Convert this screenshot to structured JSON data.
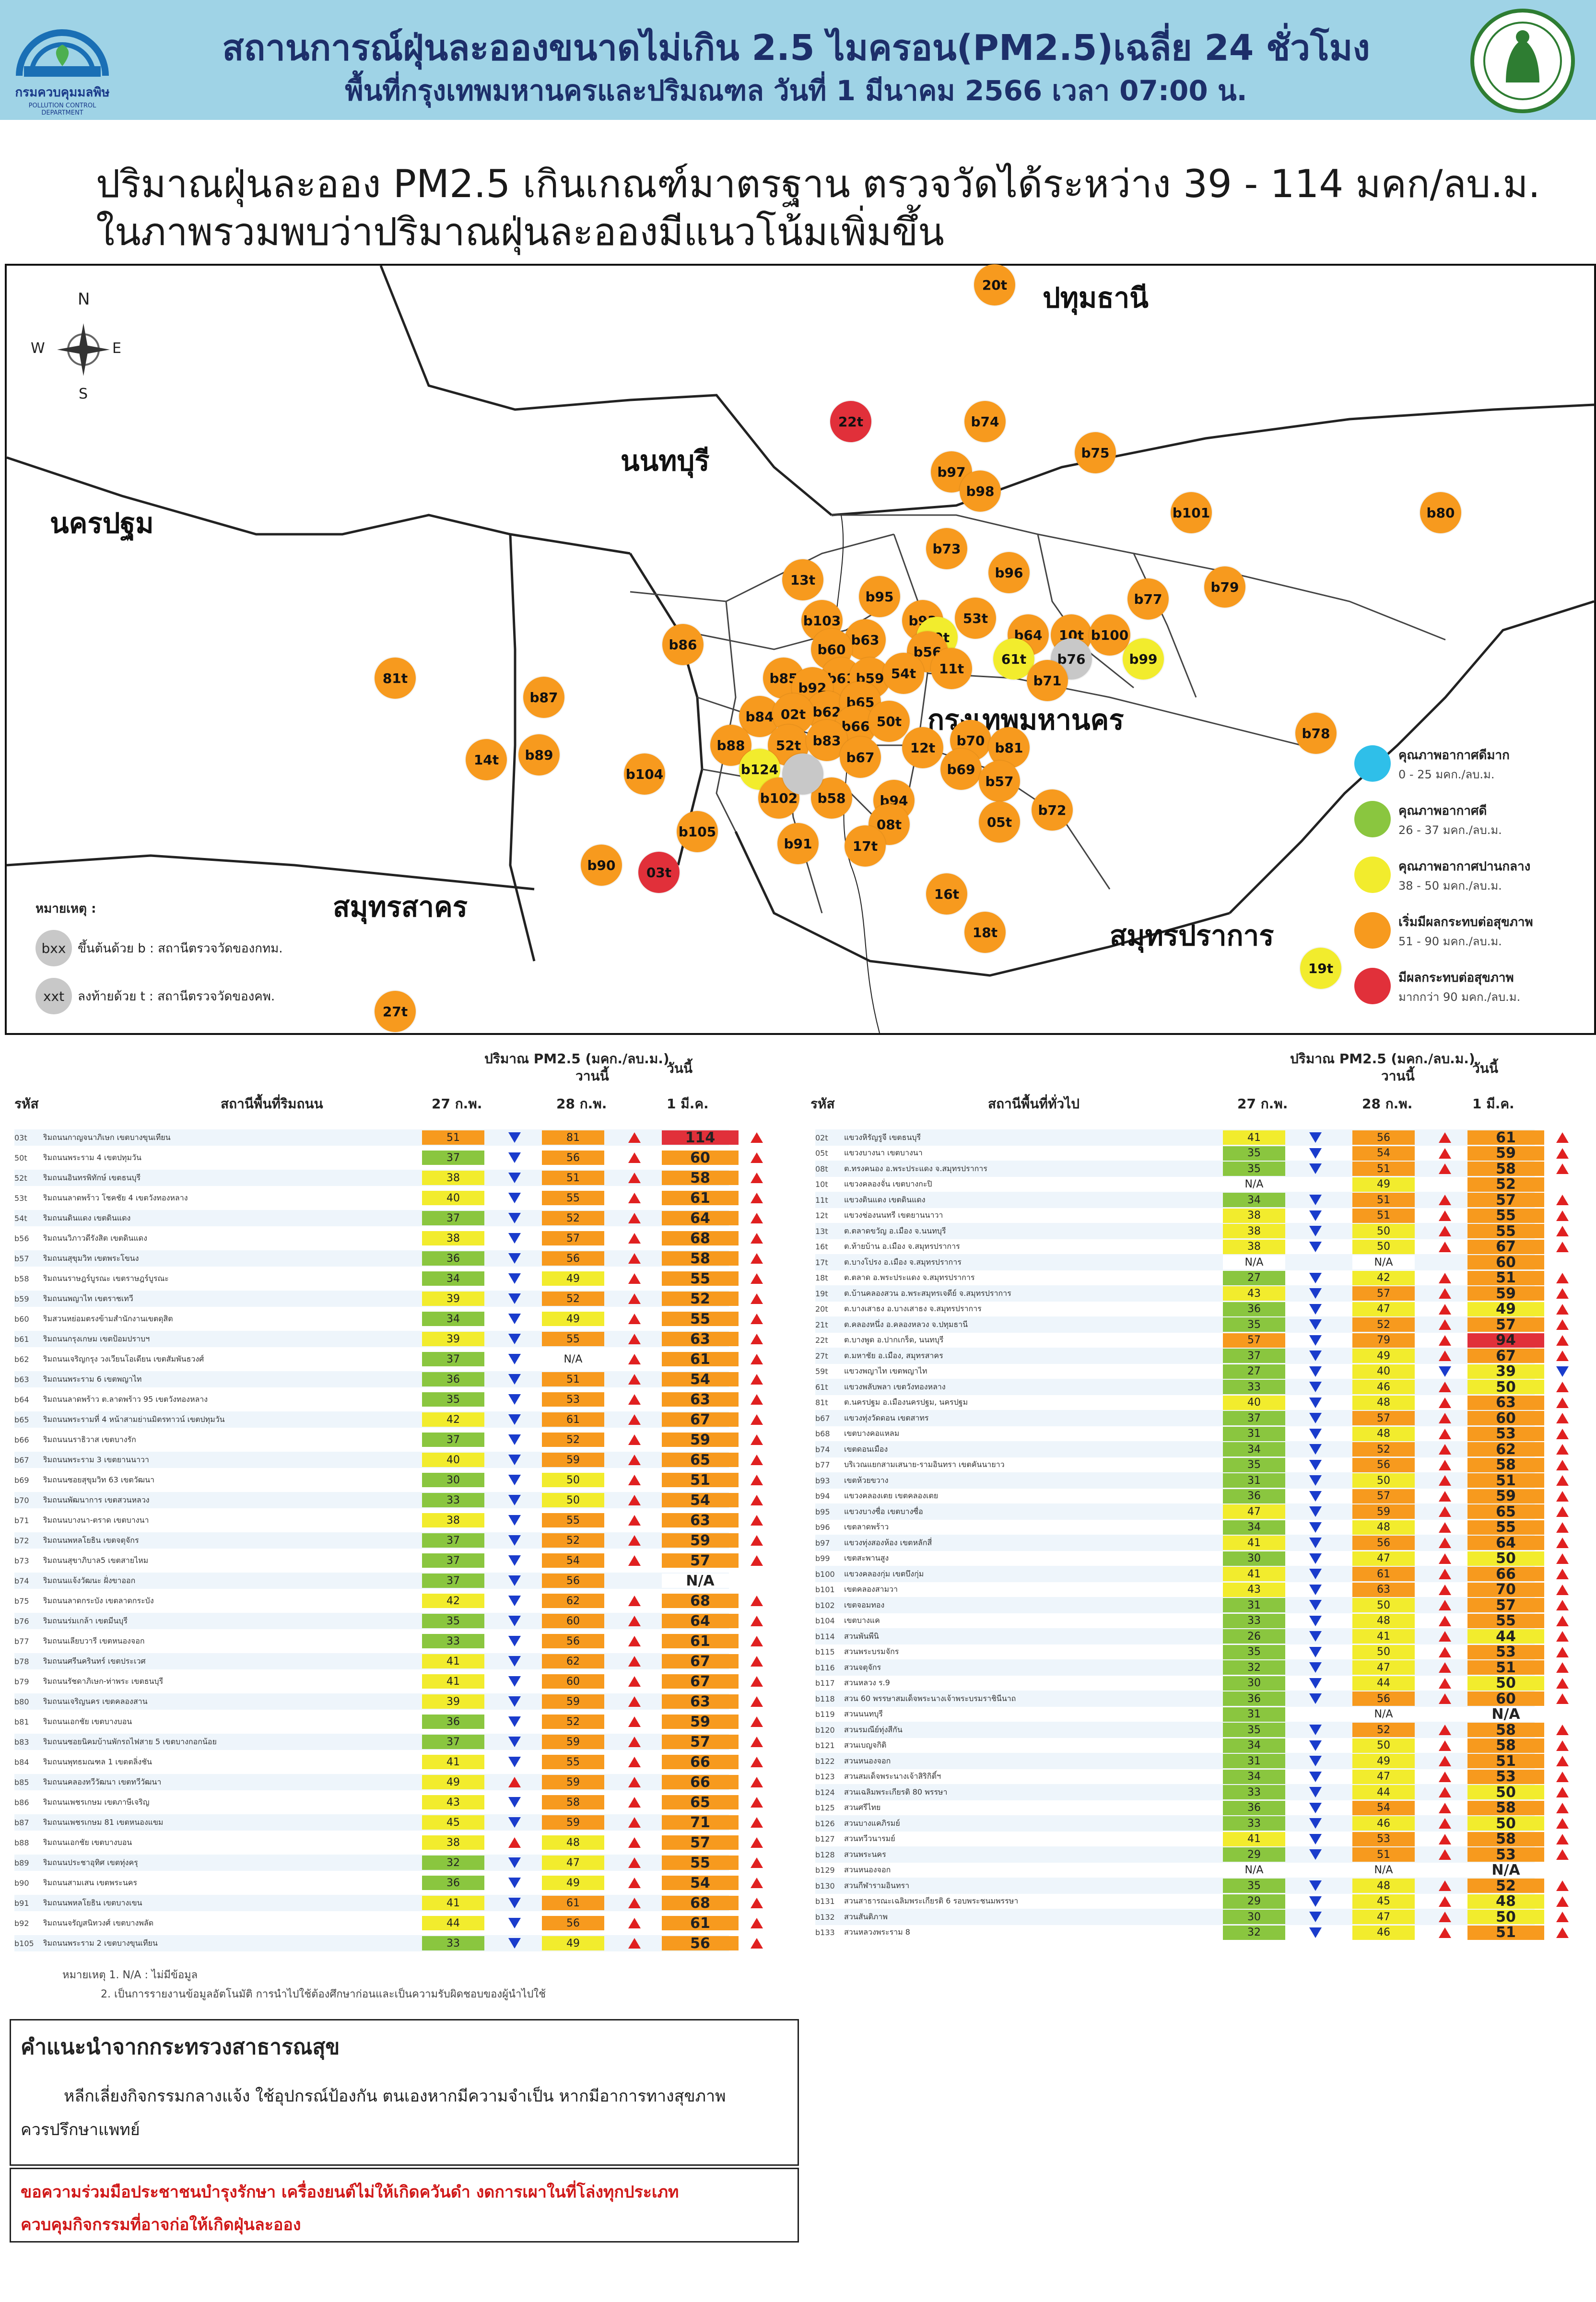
{
  "header": {
    "title": "สถานการณ์ฝุ่นละอองขนาดไม่เกิน 2.5 ไมครอน(PM2.5)เฉลี่ย 24 ชั่วโมง",
    "subtitle": "พื้นที่กรุงเทพมหานครและปริมณฑล วันที่ 1 มีนาคม 2566 เวลา 07:00 น.",
    "left_logo_text": "กรมควบคุมมลพิษ",
    "left_logo_subtext": "POLLUTION CONTROL DEPARTMENT"
  },
  "summary": {
    "line1": "ปริมาณฝุ่นละออง PM2.5 เกินเกณฑ์มาตรฐาน ตรวจวัดได้ระหว่าง 39 - 114 มคก/ลบ.ม.",
    "line2": "ในภาพรวมพบว่าปริมาณฝุ่นละอองมีแนวโน้มเพิ่มขึ้น"
  },
  "map": {
    "compass": {
      "n": "N",
      "s": "S",
      "e": "E",
      "w": "W"
    },
    "provinces": [
      "ปทุมธานี",
      "นนทบุรี",
      "นครปฐม",
      "กรุงเทพมหานคร",
      "สมุทรสาคร",
      "สมุทรปราการ"
    ],
    "stations": [
      {
        "id": "20t",
        "c": "orange"
      },
      {
        "id": "22t",
        "c": "red"
      },
      {
        "id": "b74",
        "c": "orange"
      },
      {
        "id": "b75",
        "c": "orange"
      },
      {
        "id": "b97",
        "c": "orange"
      },
      {
        "id": "b98",
        "c": "orange"
      },
      {
        "id": "b101",
        "c": "orange"
      },
      {
        "id": "b80",
        "c": "orange"
      },
      {
        "id": "b73",
        "c": "orange"
      },
      {
        "id": "b96",
        "c": "orange"
      },
      {
        "id": "b79",
        "c": "orange"
      },
      {
        "id": "b77",
        "c": "orange"
      },
      {
        "id": "13t",
        "c": "orange"
      },
      {
        "id": "b95",
        "c": "orange"
      },
      {
        "id": "b103",
        "c": "orange"
      },
      {
        "id": "b93",
        "c": "orange"
      },
      {
        "id": "53t",
        "c": "orange"
      },
      {
        "id": "59t",
        "c": "yellow"
      },
      {
        "id": "b63",
        "c": "orange"
      },
      {
        "id": "b60",
        "c": "orange"
      },
      {
        "id": "b56",
        "c": "orange"
      },
      {
        "id": "b64",
        "c": "orange"
      },
      {
        "id": "10t",
        "c": "orange"
      },
      {
        "id": "b100",
        "c": "orange"
      },
      {
        "id": "61t",
        "c": "yellow"
      },
      {
        "id": "b76",
        "c": "grey"
      },
      {
        "id": "b99",
        "c": "yellow"
      },
      {
        "id": "b86",
        "c": "orange"
      },
      {
        "id": "81t",
        "c": "orange"
      },
      {
        "id": "b85",
        "c": "orange"
      },
      {
        "id": "b61",
        "c": "orange"
      },
      {
        "id": "b59",
        "c": "orange"
      },
      {
        "id": "54t",
        "c": "orange"
      },
      {
        "id": "11t",
        "c": "orange"
      },
      {
        "id": "b71",
        "c": "orange"
      },
      {
        "id": "b92",
        "c": "orange"
      },
      {
        "id": "b62",
        "c": "orange"
      },
      {
        "id": "b65",
        "c": "orange"
      },
      {
        "id": "b87",
        "c": "orange"
      },
      {
        "id": "b84",
        "c": "orange"
      },
      {
        "id": "02t",
        "c": "orange"
      },
      {
        "id": "b66",
        "c": "orange"
      },
      {
        "id": "50t",
        "c": "orange"
      },
      {
        "id": "b88",
        "c": "orange"
      },
      {
        "id": "52t",
        "c": "orange"
      },
      {
        "id": "b83",
        "c": "orange"
      },
      {
        "id": "12t",
        "c": "orange"
      },
      {
        "id": "b70",
        "c": "orange"
      },
      {
        "id": "b81",
        "c": "orange"
      },
      {
        "id": "b78",
        "c": "orange"
      },
      {
        "id": "14t",
        "c": "orange"
      },
      {
        "id": "b89",
        "c": "orange"
      },
      {
        "id": "b124",
        "c": "yellow"
      },
      {
        "id": "b67",
        "c": "orange"
      },
      {
        "id": "b69",
        "c": "orange"
      },
      {
        "id": "b57",
        "c": "orange"
      },
      {
        "id": "b104",
        "c": "orange"
      },
      {
        "id": "b102",
        "c": "orange"
      },
      {
        "id": "b58",
        "c": "orange"
      },
      {
        "id": "b94",
        "c": "orange"
      },
      {
        "id": "b72",
        "c": "orange"
      },
      {
        "id": "08t",
        "c": "orange"
      },
      {
        "id": "05t",
        "c": "orange"
      },
      {
        "id": "b105",
        "c": "orange"
      },
      {
        "id": "b91",
        "c": "orange"
      },
      {
        "id": "17t",
        "c": "orange"
      },
      {
        "id": "b90",
        "c": "orange"
      },
      {
        "id": "03t",
        "c": "red"
      },
      {
        "id": "16t",
        "c": "orange"
      },
      {
        "id": "18t",
        "c": "orange"
      },
      {
        "id": "19t",
        "c": "yellow"
      },
      {
        "id": "27t",
        "c": "orange"
      },
      {
        "id": "",
        "c": "grey"
      }
    ],
    "legend": [
      {
        "label": "คุณภาพอากาศดีมาก",
        "range": "0 - 25 มคก./ลบ.ม.",
        "color": "#2fbfe9"
      },
      {
        "label": "คุณภาพอากาศดี",
        "range": "26 - 37 มคก./ลบ.ม.",
        "color": "#8ac63f"
      },
      {
        "label": "คุณภาพอากาศปานกลาง",
        "range": "38 - 50 มคก./ลบ.ม.",
        "color": "#f2ec2d"
      },
      {
        "label": "เริ่มมีผลกระทบต่อสุขภาพ",
        "range": "51 - 90 มคก./ลบ.ม.",
        "color": "#f79a1e"
      },
      {
        "label": "มีผลกระทบต่อสุขภาพ",
        "range": "มากกว่า 90 มคก./ลบ.ม.",
        "color": "#e1303a"
      }
    ],
    "note": {
      "title": "หมายเหตุ :",
      "bxx": "bxx",
      "bxx_text": "ขึ้นต้นด้วย b : สถานีตรวจวัดของกทม.",
      "xxt": "xxt",
      "xxt_text": "ลงท้ายด้วย t : สถานีตรวจวัดของคพ."
    }
  },
  "table_common": {
    "pm_label": "ปริมาณ PM2.5 (มคก./ลบ.ม.)",
    "yesterday": "วานนี้",
    "today": "วันนี้",
    "code": "รหัส",
    "d1": "27 ก.พ.",
    "d2": "28 ก.พ.",
    "d3": "1 มี.ค."
  },
  "left_table": {
    "station_header": "สถานีพื้นที่ริมถนน",
    "rows": [
      [
        "03t",
        "ริมถนนกาญจนาภิเษก เขตบางขุนเทียน",
        "51",
        "81",
        "114",
        "d",
        "u"
      ],
      [
        "50t",
        "ริมถนนพระราม 4 เขตปทุมวัน",
        "37",
        "56",
        "60",
        "d",
        "u"
      ],
      [
        "52t",
        "ริมถนนอินทรพิทักษ์ เขตธนบุรี",
        "38",
        "51",
        "58",
        "d",
        "u"
      ],
      [
        "53t",
        "ริมถนนลาดพร้าว โชคชัย 4 เขตวังทองหลาง",
        "40",
        "55",
        "61",
        "d",
        "u"
      ],
      [
        "54t",
        "ริมถนนดินแดง เขตดินแดง",
        "37",
        "52",
        "64",
        "d",
        "u"
      ],
      [
        "b56",
        "ริมถนนวิภาวดีรังสิต เขตดินแดง",
        "38",
        "57",
        "68",
        "d",
        "u"
      ],
      [
        "b57",
        "ริมถนนสุขุมวิท เขตพระโขนง",
        "36",
        "56",
        "58",
        "d",
        "u"
      ],
      [
        "b58",
        "ริมถนนราษฎร์บูรณะ เขตราษฎร์บูรณะ",
        "34",
        "49",
        "55",
        "d",
        "u"
      ],
      [
        "b59",
        "ริมถนนพญาไท เขตราชเทวี",
        "39",
        "52",
        "52",
        "d",
        "u"
      ],
      [
        "b60",
        "ริมสวนหย่อมตรงข้ามสำนักงานเขตดุสิต",
        "34",
        "49",
        "55",
        "d",
        "u"
      ],
      [
        "b61",
        "ริมถนนกรุงเกษม เขตป้อมปราบฯ",
        "39",
        "55",
        "63",
        "d",
        "u"
      ],
      [
        "b62",
        "ริมถนนเจริญกรุง วงเวียนโอเดียน เขตสัมพันธวงศ์",
        "37",
        "N/A",
        "61",
        "d",
        "u"
      ],
      [
        "b63",
        "ริมถนนพระราม 6 เขตพญาไท",
        "36",
        "51",
        "54",
        "d",
        "u"
      ],
      [
        "b64",
        "ริมถนนลาดพร้าว ต.ลาดพร้าว 95 เขตวังทองหลาง",
        "35",
        "53",
        "63",
        "d",
        "u"
      ],
      [
        "b65",
        "ริมถนนพระรามที่ 4 หน้าสามย่านมิตรทาวน์ เขตปทุมวัน",
        "42",
        "61",
        "67",
        "d",
        "u"
      ],
      [
        "b66",
        "ริมถนนนราธิวาส เขตบางรัก",
        "37",
        "52",
        "59",
        "d",
        "u"
      ],
      [
        "b67",
        "ริมถนนพระราม 3 เขตยานนาวา",
        "40",
        "59",
        "65",
        "d",
        "u"
      ],
      [
        "b69",
        "ริมถนนซอยสุขุมวิท 63 เขตวัฒนา",
        "30",
        "50",
        "51",
        "d",
        "u"
      ],
      [
        "b70",
        "ริมถนนพัฒนาการ เขตสวนหลวง",
        "33",
        "50",
        "54",
        "d",
        "u"
      ],
      [
        "b71",
        "ริมถนนบางนา-ตราด เขตบางนา",
        "38",
        "55",
        "63",
        "d",
        "u"
      ],
      [
        "b72",
        "ริมถนนพหลโยธิน เขตจตุจักร",
        "37",
        "52",
        "59",
        "d",
        "u"
      ],
      [
        "b73",
        "ริมถนนสุขาภิบาล5 เขตสายไหม",
        "37",
        "54",
        "57",
        "d",
        "u"
      ],
      [
        "b74",
        "ริมถนนแจ้งวัฒนะ ฝั่งขาออก",
        "37",
        "56",
        "N/A",
        "d",
        ""
      ],
      [
        "b75",
        "ริมถนนลาดกระบัง เขตลาดกระบัง",
        "42",
        "62",
        "68",
        "d",
        "u"
      ],
      [
        "b76",
        "ริมถนนร่มเกล้า เขตมีนบุรี",
        "35",
        "60",
        "64",
        "d",
        "u"
      ],
      [
        "b77",
        "ริมถนนเลียบวารี เขตหนองจอก",
        "33",
        "56",
        "61",
        "d",
        "u"
      ],
      [
        "b78",
        "ริมถนนศรีนครินทร์ เขตประเวศ",
        "41",
        "62",
        "67",
        "d",
        "u"
      ],
      [
        "b79",
        "ริมถนนรัชดาภิเษก-ท่าพระ เขตธนบุรี",
        "41",
        "60",
        "67",
        "d",
        "u"
      ],
      [
        "b80",
        "ริมถนนเจริญนคร เขตคลองสาน",
        "39",
        "59",
        "63",
        "d",
        "u"
      ],
      [
        "b81",
        "ริมถนนเอกชัย เขตบางบอน",
        "36",
        "52",
        "59",
        "d",
        "u"
      ],
      [
        "b83",
        "ริมถนนซอยนิคมบ้านพักรถไฟสาย 5 เขตบางกอกน้อย",
        "37",
        "59",
        "57",
        "d",
        "u"
      ],
      [
        "b84",
        "ริมถนนพุทธมณฑล 1 เขตตลิ่งชัน",
        "41",
        "55",
        "66",
        "d",
        "u"
      ],
      [
        "b85",
        "ริมถนนคลองทวีวัฒนา เขตทวีวัฒนา",
        "49",
        "59",
        "66",
        "u",
        "u"
      ],
      [
        "b86",
        "ริมถนนเพชรเกษม เขตภาษีเจริญ",
        "43",
        "58",
        "65",
        "d",
        "u"
      ],
      [
        "b87",
        "ริมถนนเพชรเกษม 81 เขตหนองแขม",
        "45",
        "59",
        "71",
        "d",
        "u"
      ],
      [
        "b88",
        "ริมถนนเอกชัย เขตบางบอน",
        "38",
        "48",
        "57",
        "u",
        "u"
      ],
      [
        "b89",
        "ริมถนนประชาอุทิศ เขตทุ่งครุ",
        "32",
        "47",
        "55",
        "d",
        "u"
      ],
      [
        "b90",
        "ริมถนนสามเสน เขตพระนคร",
        "36",
        "49",
        "54",
        "d",
        "u"
      ],
      [
        "b91",
        "ริมถนนพหลโยธิน เขตบางเขน",
        "41",
        "61",
        "68",
        "d",
        "u"
      ],
      [
        "b92",
        "ริมถนนจรัญสนิทวงศ์ เขตบางพลัด",
        "44",
        "56",
        "61",
        "d",
        "u"
      ],
      [
        "b105",
        "ริมถนนพระราม 2 เขตบางขุนเทียน",
        "33",
        "49",
        "56",
        "d",
        "u"
      ]
    ],
    "footnote1": "หมายเหตุ 1. N/A : ไม่มีข้อมูล",
    "footnote2": "2. เป็นการรายงานข้อมูลอัตโนมัติ การนำไปใช้ต้องศึกษาก่อนและเป็นความรับผิดชอบของผู้นำไปใช้"
  },
  "right_table": {
    "station_header": "สถานีพื้นที่ทั่วไป",
    "rows": [
      [
        "02t",
        "แขวงหิรัญรูจี เขตธนบุรี",
        "41",
        "56",
        "61",
        "d",
        "u"
      ],
      [
        "05t",
        "แขวงบางนา เขตบางนา",
        "35",
        "54",
        "59",
        "d",
        "u"
      ],
      [
        "08t",
        "ต.ทรงคนอง อ.พระประแดง จ.สมุทรปราการ",
        "35",
        "51",
        "58",
        "d",
        "u"
      ],
      [
        "10t",
        "แขวงคลองจั่น เขตบางกะปิ",
        "N/A",
        "49",
        "52",
        "",
        ""
      ],
      [
        "11t",
        "แขวงดินแดง เขตดินแดง",
        "34",
        "51",
        "57",
        "d",
        "u"
      ],
      [
        "12t",
        "แขวงช่องนนทรี เขตยานนาวา",
        "38",
        "51",
        "55",
        "d",
        "u"
      ],
      [
        "13t",
        "ต.ตลาดขวัญ อ.เมือง จ.นนทบุรี",
        "38",
        "50",
        "55",
        "d",
        "u"
      ],
      [
        "16t",
        "ต.ท้ายบ้าน อ.เมือง จ.สมุทรปราการ",
        "38",
        "50",
        "67",
        "d",
        "u"
      ],
      [
        "17t",
        "ต.บางโปรง อ.เมือง จ.สมุทรปราการ",
        "N/A",
        "N/A",
        "60",
        "",
        ""
      ],
      [
        "18t",
        "ต.ตลาด อ.พระประแดง จ.สมุทรปราการ",
        "27",
        "42",
        "51",
        "d",
        "u"
      ],
      [
        "19t",
        "ต.บ้านคลองสวน อ.พระสมุทรเจดีย์ จ.สมุทรปราการ",
        "43",
        "57",
        "59",
        "d",
        "u"
      ],
      [
        "20t",
        "ต.บางเสาธง อ.บางเสาธง จ.สมุทรปราการ",
        "36",
        "47",
        "49",
        "d",
        "u"
      ],
      [
        "21t",
        "ต.คลองหนึ่ง อ.คลองหลวง จ.ปทุมธานี",
        "35",
        "52",
        "57",
        "d",
        "u"
      ],
      [
        "22t",
        "ต.บางพูด อ.ปากเกร็ด, นนทบุรี",
        "57",
        "79",
        "94",
        "d",
        "u"
      ],
      [
        "27t",
        "ต.มหาชัย อ.เมือง, สมุทรสาคร",
        "37",
        "49",
        "67",
        "d",
        "u"
      ],
      [
        "59t",
        "แขวงพญาไท เขตพญาไท",
        "27",
        "40",
        "39",
        "d",
        "d"
      ],
      [
        "61t",
        "แขวงพลับพลา เขตวังทองหลาง",
        "33",
        "46",
        "50",
        "d",
        "u"
      ],
      [
        "81t",
        "ต.นครปฐม อ.เมืองนครปฐม, นครปฐม",
        "40",
        "48",
        "63",
        "d",
        "u"
      ],
      [
        "b67",
        "แขวงทุ่งวัดดอน เขตสาทร",
        "37",
        "57",
        "60",
        "d",
        "u"
      ],
      [
        "b68",
        "เขตบางคอแหลม",
        "31",
        "48",
        "53",
        "d",
        "u"
      ],
      [
        "b74",
        "เขตดอนเมือง",
        "34",
        "52",
        "62",
        "d",
        "u"
      ],
      [
        "b77",
        "บริเวณแยกสามเสนาย-รามอินทรา เขตคันนายาว",
        "35",
        "56",
        "58",
        "d",
        "u"
      ],
      [
        "b93",
        "เขตห้วยขวาง",
        "31",
        "50",
        "51",
        "d",
        "u"
      ],
      [
        "b94",
        "แขวงคลองเตย เขตคลองเตย",
        "36",
        "57",
        "59",
        "d",
        "u"
      ],
      [
        "b95",
        "แขวงบางซื่อ เขตบางซื่อ",
        "47",
        "59",
        "65",
        "d",
        "u"
      ],
      [
        "b96",
        "เขตลาดพร้าว",
        "34",
        "48",
        "55",
        "d",
        "u"
      ],
      [
        "b97",
        "แขวงทุ่งสองห้อง เขตหลักสี่",
        "41",
        "56",
        "64",
        "d",
        "u"
      ],
      [
        "b99",
        "เขตสะพานสูง",
        "30",
        "47",
        "50",
        "d",
        "u"
      ],
      [
        "b100",
        "แขวงคลองกุ่ม เขตบึงกุ่ม",
        "41",
        "61",
        "66",
        "d",
        "u"
      ],
      [
        "b101",
        "เขตคลองสามวา",
        "43",
        "63",
        "70",
        "d",
        "u"
      ],
      [
        "b102",
        "เขตจอมทอง",
        "31",
        "50",
        "57",
        "d",
        "u"
      ],
      [
        "b104",
        "เขตบางแค",
        "33",
        "48",
        "55",
        "d",
        "u"
      ],
      [
        "b114",
        "สวนพันพีนิ",
        "26",
        "41",
        "44",
        "d",
        "u"
      ],
      [
        "b115",
        "สวนพระบรมจักร",
        "35",
        "50",
        "53",
        "d",
        "u"
      ],
      [
        "b116",
        "สวนจตุจักร",
        "32",
        "47",
        "51",
        "d",
        "u"
      ],
      [
        "b117",
        "สวนหลวง ร.9",
        "30",
        "44",
        "50",
        "d",
        "u"
      ],
      [
        "b118",
        "สวน 60 พรรษาสมเด็จพระนางเจ้าพระบรมราชินีนาถ",
        "36",
        "56",
        "60",
        "d",
        "u"
      ],
      [
        "b119",
        "สวนนนทบุรี",
        "31",
        "N/A",
        "N/A",
        "",
        ""
      ],
      [
        "b120",
        "สวนรมณีย์ทุ่งสีกัน",
        "35",
        "52",
        "58",
        "d",
        "u"
      ],
      [
        "b121",
        "สวนเบญจกิติ",
        "34",
        "50",
        "58",
        "d",
        "u"
      ],
      [
        "b122",
        "สวนหนองจอก",
        "31",
        "49",
        "51",
        "d",
        "u"
      ],
      [
        "b123",
        "สวนสมเด็จพระนางเจ้าสิริกิติ์ฯ",
        "34",
        "47",
        "53",
        "d",
        "u"
      ],
      [
        "b124",
        "สวนเฉลิมพระเกียรติ 80 พรรษา",
        "33",
        "44",
        "50",
        "d",
        "u"
      ],
      [
        "b125",
        "สวนศรีไทย",
        "36",
        "54",
        "58",
        "d",
        "u"
      ],
      [
        "b126",
        "สวนบางแคภิรมย์",
        "33",
        "46",
        "50",
        "d",
        "u"
      ],
      [
        "b127",
        "สวนทวีวนารมย์",
        "41",
        "53",
        "58",
        "d",
        "u"
      ],
      [
        "b128",
        "สวนพระนคร",
        "29",
        "51",
        "53",
        "d",
        "u"
      ],
      [
        "b129",
        "สวนหนองจอก",
        "N/A",
        "N/A",
        "N/A",
        "",
        ""
      ],
      [
        "b130",
        "สวนกีฬารามอินทรา",
        "35",
        "48",
        "52",
        "d",
        "u"
      ],
      [
        "b131",
        "สวนสาธารณะเฉลิมพระเกียรติ 6 รอบพระชนมพรรษา",
        "29",
        "45",
        "48",
        "d",
        "u"
      ],
      [
        "b132",
        "สวนสันติภาพ",
        "30",
        "47",
        "50",
        "d",
        "u"
      ],
      [
        "b133",
        "สวนหลวงพระราม 8",
        "32",
        "46",
        "51",
        "d",
        "u"
      ]
    ]
  },
  "advice": {
    "title": "คำแนะนำจากกระทรวงสาธารณสุข",
    "text1": "หลีกเลี่ยงกิจกรรมกลางแจ้ง ใช้อุปกรณ์ป้องกัน ตนเองหากมีความจำเป็น หากมีอาการทางสุขภาพ",
    "text2": "ควรปรึกษาแพทย์"
  },
  "appeal": {
    "text1": "ขอความร่วมมือประชาชนบำรุงรักษา เครื่องยนต์ไม่ให้เกิดควันดำ งดการเผาในที่โล่งทุกประเภท",
    "text2": "ควบคุมกิจกรรมที่อาจก่อให้เกิดฝุ่นละออง"
  }
}
